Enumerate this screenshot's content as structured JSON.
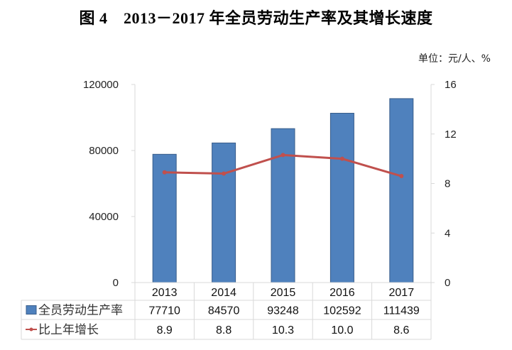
{
  "header": {
    "title": "图 4　2013－2017 年全员劳动生产率及其增长速度",
    "unit": "单位：元/人、%"
  },
  "colors": {
    "bar": "#4F81BD",
    "bar_border": "#385D8A",
    "line": "#C0504D",
    "grid": "#D9D9D9"
  },
  "chart_data": {
    "type": "bar+line",
    "title": "图 4　2013－2017 年全员劳动生产率及其增长速度",
    "unit_note": "单位：元/人、%",
    "categories": [
      "2013",
      "2014",
      "2015",
      "2016",
      "2017"
    ],
    "series": [
      {
        "name": "全员劳动生产率",
        "type": "bar",
        "axis": "left",
        "values": [
          77710,
          84570,
          93248,
          102592,
          111439
        ]
      },
      {
        "name": "比上年增长",
        "type": "line",
        "axis": "right",
        "values": [
          8.9,
          8.8,
          10.3,
          10.0,
          8.6
        ]
      }
    ],
    "y_left": {
      "min": 0,
      "max": 120000,
      "ticks": [
        "0",
        "40000",
        "80000",
        "120000"
      ]
    },
    "y_right": {
      "min": 0,
      "max": 16,
      "ticks": [
        "0",
        "4",
        "8",
        "12",
        "16"
      ]
    },
    "legend_position": "data-table",
    "grid": false
  },
  "table": {
    "rows": [
      {
        "label": "全员劳动生产率",
        "cells": [
          "77710",
          "84570",
          "93248",
          "102592",
          "111439"
        ]
      },
      {
        "label": "比上年增长",
        "cells": [
          "8.9",
          "8.8",
          "10.3",
          "10.0",
          "8.6"
        ]
      }
    ]
  }
}
